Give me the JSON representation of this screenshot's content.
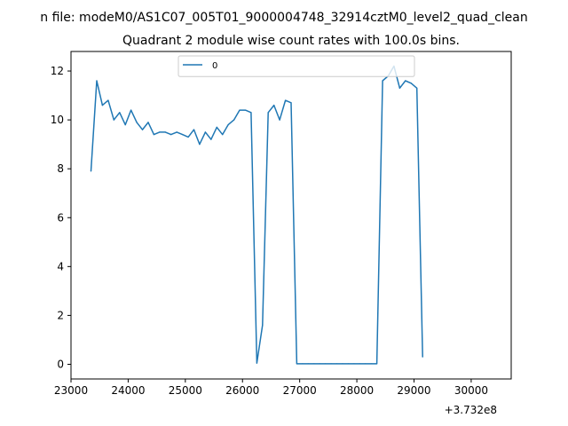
{
  "chart_data": {
    "type": "line",
    "suptitle": "n file: modeM0/AS1C07_005T01_9000004748_32914cztM0_level2_quad_clean",
    "title": "Quadrant 2 module wise count rates with 100.0s bins.",
    "xlabel": "",
    "ylabel": "",
    "x_offset_label": "+3.732e8",
    "xlim": [
      23000,
      30700
    ],
    "ylim": [
      -0.6,
      12.8
    ],
    "xticks": [
      23000,
      24000,
      25000,
      26000,
      27000,
      28000,
      29000,
      30000
    ],
    "xtick_labels": [
      "23000",
      "24000",
      "25000",
      "26000",
      "27000",
      "28000",
      "29000",
      "30000"
    ],
    "yticks": [
      0,
      2,
      4,
      6,
      8,
      10,
      12
    ],
    "ytick_labels": [
      "0",
      "2",
      "4",
      "6",
      "8",
      "10",
      "12"
    ],
    "legend_location": "upper center",
    "grid": false,
    "time_start": 23350,
    "time_step": 100,
    "series": [
      {
        "name": "0",
        "color": "#1f77b4",
        "dash": "solid",
        "values": [
          7.9,
          11.6,
          10.6,
          10.8,
          10.0,
          10.3,
          9.8,
          10.4,
          9.9,
          9.6,
          9.9,
          9.4,
          9.5,
          9.5,
          9.4,
          9.5,
          9.4,
          9.3,
          9.6,
          9.0,
          9.5,
          9.2,
          9.7,
          9.4,
          9.8,
          10.0,
          10.4,
          10.4,
          10.3,
          0.05,
          1.6,
          10.3,
          10.6,
          10.0,
          10.8,
          10.7,
          0.02,
          0.02,
          0.02,
          0.02,
          0.02,
          0.02,
          0.02,
          0.02,
          0.02,
          0.02,
          0.02,
          0.02,
          0.02,
          0.02,
          0.02,
          11.6,
          11.8,
          12.2,
          11.3,
          11.6,
          11.5,
          11.3,
          0.3
        ]
      }
    ]
  }
}
